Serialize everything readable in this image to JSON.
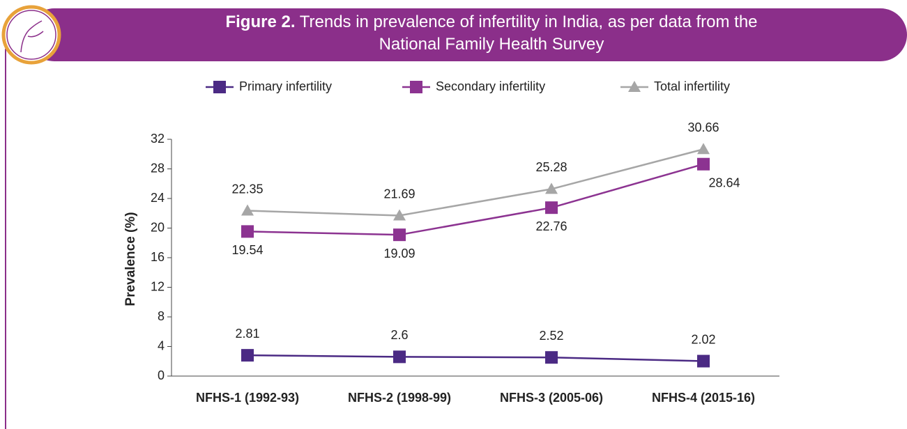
{
  "chart_data": {
    "type": "line",
    "title_label": "Figure 2.",
    "title": "Trends in prevalence of infertility in India, as per data from the National Family Health Survey",
    "ylabel": "Prevalence (%)",
    "categories": [
      "NFHS-1 (1992-93)",
      "NFHS-2 (1998-99)",
      "NFHS-3 (2005-06)",
      "NFHS-4 (2015-16)"
    ],
    "series": [
      {
        "name": "Primary infertility",
        "color": "#4b2a84",
        "marker": "square",
        "values": [
          2.81,
          2.6,
          2.52,
          2.02
        ]
      },
      {
        "name": "Secondary infertility",
        "color": "#8c3391",
        "marker": "square",
        "values": [
          19.54,
          19.09,
          22.76,
          28.64
        ]
      },
      {
        "name": "Total infertility",
        "color": "#a6a6a6",
        "marker": "triangle",
        "values": [
          22.35,
          21.69,
          25.28,
          30.66
        ]
      }
    ],
    "ylim": [
      0,
      32
    ],
    "yticks": [
      0,
      4,
      8,
      12,
      16,
      20,
      24,
      28,
      32
    ],
    "grid": false,
    "legend": "top"
  }
}
